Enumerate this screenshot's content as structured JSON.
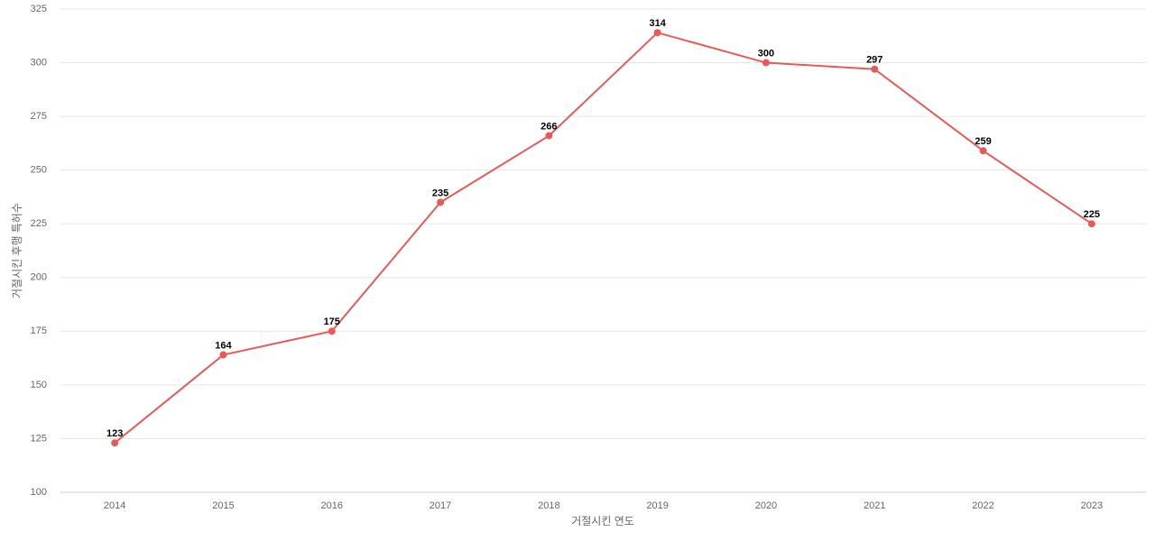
{
  "chart_data": {
    "type": "line",
    "x_label": "거절시킨 연도",
    "y_label": "거절시킨 후행 특허수",
    "categories": [
      "2014",
      "2015",
      "2016",
      "2017",
      "2018",
      "2019",
      "2020",
      "2021",
      "2022",
      "2023"
    ],
    "values": [
      123,
      164,
      175,
      235,
      266,
      314,
      300,
      297,
      259,
      225
    ],
    "color": "#e85a5a",
    "ylim": [
      100,
      325
    ],
    "yticks": [
      100,
      125,
      150,
      175,
      200,
      225,
      250,
      275,
      300,
      325
    ],
    "grid": true
  }
}
